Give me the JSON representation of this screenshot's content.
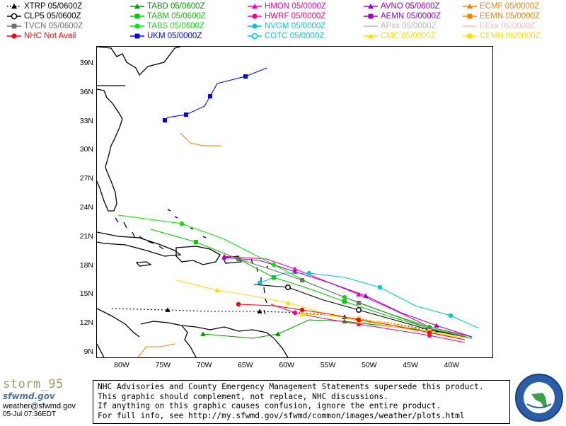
{
  "legend": [
    {
      "label": "XTRP  05/0600Z",
      "color": "#000000",
      "marker": "triangle",
      "style": "dotted"
    },
    {
      "label": "TABD  05/0600Z",
      "color": "#009900",
      "marker": "triangle",
      "style": "solid"
    },
    {
      "label": "HMON  05/0000Z",
      "color": "#ff00aa",
      "marker": "triangle",
      "style": "solid"
    },
    {
      "label": "AVNO  05/0600Z",
      "color": "#9900cc",
      "marker": "triangle",
      "style": "solid"
    },
    {
      "label": "ECMF  05/0000Z",
      "color": "#ff8000",
      "marker": "triangle",
      "style": "solid"
    },
    {
      "label": "CLP5  05/0600Z",
      "color": "#000000",
      "marker": "circle-open",
      "style": "solid"
    },
    {
      "label": "TABM  05/0600Z",
      "color": "#00cc00",
      "marker": "square",
      "style": "solid"
    },
    {
      "label": "HWRF  05/0000Z",
      "color": "#ff0080",
      "marker": "circle",
      "style": "solid"
    },
    {
      "label": "AEMN  05/0000Z",
      "color": "#9900cc",
      "marker": "square",
      "style": "solid"
    },
    {
      "label": "EEMN  05/0000Z",
      "color": "#ff8000",
      "marker": "square",
      "style": "solid"
    },
    {
      "label": "TVCN  05/0600Z",
      "color": "#707070",
      "marker": "square",
      "style": "solid"
    },
    {
      "label": "TABS  05/0600Z",
      "color": "#00ee00",
      "marker": "circle",
      "style": "solid"
    },
    {
      "label": "NVGM  05/0000Z",
      "color": "#00cccc",
      "marker": "circle",
      "style": "solid"
    },
    {
      "label": "APxx  05/0000Z",
      "color": "#bbbbbb",
      "marker": "none",
      "style": "solid"
    },
    {
      "label": "EExx  05/0000Z",
      "color": "#ffbbbb",
      "marker": "none",
      "style": "solid"
    },
    {
      "label": "NHC Not Avail",
      "color": "#ff0000",
      "marker": "circle",
      "style": "solid"
    },
    {
      "label": "UKM   05/0000Z",
      "color": "#0000ff",
      "marker": "square",
      "style": "solid"
    },
    {
      "label": "COTC  05/0000Z",
      "color": "#00cccc",
      "marker": "circle-open",
      "style": "solid"
    },
    {
      "label": "CMC   05/0000Z",
      "color": "#ffdd00",
      "marker": "triangle",
      "style": "solid"
    },
    {
      "label": "CEMN  05/0000Z",
      "color": "#ffdd00",
      "marker": "square",
      "style": "solid"
    }
  ],
  "map": {
    "lat_labels": [
      "39N",
      "36N",
      "33N",
      "30N",
      "27N",
      "24N",
      "21N",
      "18N",
      "15N",
      "12N",
      "9N"
    ],
    "lon_labels": [
      "80W",
      "75W",
      "70W",
      "65W",
      "60W",
      "55W",
      "50W",
      "45W",
      "40W"
    ]
  },
  "brand": {
    "logo_text": "storm_95",
    "sublogo": "sfwmd.gov",
    "email": "weather@sfwmd.gov",
    "timestamp": "05-Jul 07:36EDT"
  },
  "notice": {
    "line1": "NHC Advisories and County Emergency Management Statements supersede this product.",
    "line2": "This graphic should complement, not replace, NHC discussions.",
    "line3": "If anything on this graphic causes confusion, ignore the entire product.",
    "line4": "For full info, see  http://my.sfwmd.gov/sfwmd/common/images/weather/plots.html"
  }
}
